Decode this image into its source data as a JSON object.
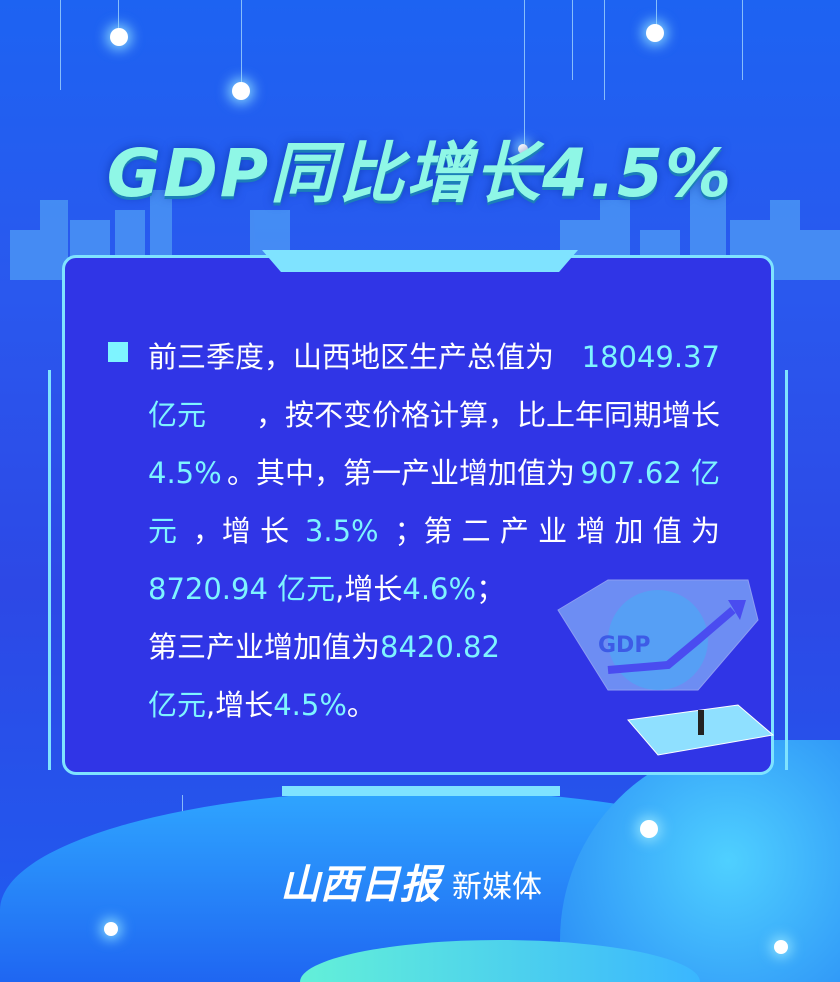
{
  "title": "GDP同比增长4.5%",
  "body_lines": [
    [
      {
        "t": "前三季度，山西地区生产总值为",
        "c": "w"
      },
      {
        "t": "18049.37",
        "c": "n"
      }
    ],
    [
      {
        "t": "亿元",
        "c": "n"
      },
      {
        "t": "，按不变价格计算，比上年同期增长",
        "c": "w"
      }
    ],
    [
      {
        "t": "4.5%",
        "c": "n"
      },
      {
        "t": "。其中，第一产业增加值为",
        "c": "w"
      },
      {
        "t": "907.62 亿",
        "c": "n"
      }
    ],
    [
      {
        "t": "元",
        "c": "n"
      },
      {
        "t": "，增 长",
        "c": "w"
      },
      {
        "t": "3.5%",
        "c": "n"
      },
      {
        "t": "；第 二 产 业 增 加 值 为",
        "c": "w"
      }
    ],
    [
      {
        "t": "8720.94 亿元",
        "c": "n"
      },
      {
        "t": ",增长",
        "c": "w"
      },
      {
        "t": "4.6%",
        "c": "n"
      },
      {
        "t": "；",
        "c": "w"
      }
    ],
    [
      {
        "t": "第三产业增加值为",
        "c": "w"
      },
      {
        "t": "8420.82",
        "c": "n"
      }
    ],
    [
      {
        "t": "亿元",
        "c": "n"
      },
      {
        "t": ",增长",
        "c": "w"
      },
      {
        "t": "4.5%",
        "c": "n"
      },
      {
        "t": "。",
        "c": "w"
      }
    ]
  ],
  "illustration_label": "GDP",
  "footer": {
    "logo": "山西日报",
    "suffix": "新媒体"
  },
  "colors": {
    "highlight": "#7ef4ff",
    "panel": "#3035e6",
    "border": "#7fe3ff"
  }
}
